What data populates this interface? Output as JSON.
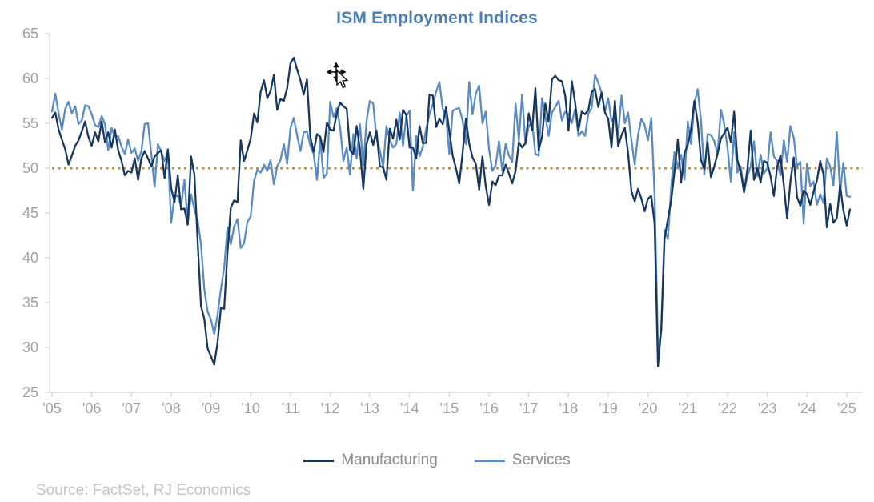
{
  "title": "ISM Employment Indices",
  "source_note": "Source: FactSet, RJ Economics",
  "cursor_icon": "move-pointer-cursor",
  "colors": {
    "title": "#4a7eb5",
    "axis_line": "#d9d9d9",
    "axis_text": "#a0a0a0",
    "legend_text": "#8a8a8a",
    "source_text": "#c4c4c4",
    "reference_line": "#b2924d",
    "manufacturing": "#17375e",
    "services": "#5a8bc2"
  },
  "chart_data": {
    "type": "line",
    "title": "ISM Employment Indices",
    "xlabel": "",
    "ylabel": "",
    "ylim": [
      25,
      65
    ],
    "y_ticks": [
      25,
      30,
      35,
      40,
      45,
      50,
      55,
      60,
      65
    ],
    "x_tick_labels": [
      "'05",
      "'06",
      "'07",
      "'08",
      "'09",
      "'10",
      "'11",
      "'12",
      "'13",
      "'14",
      "'15",
      "'16",
      "'17",
      "'18",
      "'19",
      "'20",
      "'21",
      "'22",
      "'23",
      "'24",
      "'25"
    ],
    "frequency": "monthly",
    "start": "2005-01",
    "grid": false,
    "legend_position": "bottom",
    "reference_line": {
      "value": 50,
      "style": "dotted",
      "color": "#b2924d"
    },
    "series": [
      {
        "name": "Manufacturing",
        "color": "#17375e",
        "values": [
          55.6,
          56.2,
          54.3,
          53.2,
          52.1,
          50.4,
          51.4,
          52.5,
          53.1,
          54.1,
          55.2,
          53.5,
          52.5,
          54.0,
          53.0,
          55.2,
          52.9,
          54.0,
          52.3,
          54.3,
          52.0,
          50.8,
          49.2,
          49.7,
          49.5,
          51.1,
          48.7,
          51.1,
          51.9,
          51.1,
          50.2,
          51.3,
          51.7,
          52.0,
          48.9,
          52.1,
          47.8,
          46.2,
          49.2,
          45.4,
          45.5,
          43.7,
          51.3,
          49.3,
          41.8,
          34.6,
          33.2,
          29.9,
          29.0,
          28.1,
          30.5,
          34.4,
          34.3,
          40.7,
          45.6,
          46.4,
          46.2,
          53.1,
          50.8,
          52.0,
          53.3,
          56.1,
          55.1,
          58.5,
          59.8,
          57.8,
          58.6,
          60.4,
          56.5,
          57.7,
          57.5,
          58.9,
          61.7,
          62.3,
          61.0,
          59.8,
          58.2,
          59.9,
          53.5,
          51.8,
          53.8,
          53.5,
          51.8,
          55.1,
          54.3,
          54.2,
          56.1,
          57.3,
          56.9,
          56.6,
          52.0,
          51.6,
          54.7,
          52.1,
          47.7,
          52.7,
          54.0,
          52.6,
          54.2,
          50.2,
          50.1,
          48.7,
          54.4,
          53.3,
          55.4,
          53.2,
          56.5,
          55.9,
          52.3,
          52.3,
          51.1,
          54.7,
          52.8,
          52.8,
          58.2,
          58.1,
          54.6,
          55.5,
          54.9,
          56.8,
          54.1,
          51.4,
          50.0,
          48.3,
          51.7,
          55.5,
          52.7,
          51.2,
          50.5,
          47.6,
          51.3,
          48.0,
          45.9,
          48.5,
          48.1,
          49.2,
          49.2,
          50.4,
          49.4,
          48.3,
          49.7,
          52.9,
          52.3,
          52.8,
          56.1,
          54.2,
          58.9,
          52.0,
          53.5,
          57.2,
          55.2,
          59.9,
          60.3,
          59.8,
          59.7,
          58.1,
          54.2,
          59.7,
          57.3,
          54.2,
          56.3,
          56.0,
          56.5,
          58.5,
          58.8,
          56.8,
          58.4,
          56.2,
          55.5,
          52.3,
          57.5,
          52.4,
          53.7,
          54.5,
          51.7,
          47.4,
          46.3,
          47.7,
          46.6,
          45.2,
          46.6,
          46.9,
          43.8,
          27.9,
          32.1,
          42.1,
          44.3,
          46.4,
          49.6,
          53.2,
          48.4,
          51.7,
          52.6,
          54.4,
          57.5,
          55.1,
          50.9,
          49.9,
          52.9,
          49.0,
          50.2,
          51.6,
          53.3,
          53.9,
          54.5,
          52.9,
          56.3,
          50.9,
          49.6,
          47.3,
          49.9,
          54.2,
          48.7,
          50.0,
          48.4,
          50.8,
          50.6,
          49.1,
          46.9,
          50.2,
          51.4,
          48.1,
          44.4,
          48.5,
          51.2,
          46.8,
          45.8,
          47.5,
          47.1,
          45.9,
          47.4,
          48.6,
          50.8,
          49.3,
          43.4,
          46.0,
          43.9,
          44.4,
          48.1,
          45.3,
          43.6,
          45.4
        ]
      },
      {
        "name": "Services",
        "color": "#5a8bc2",
        "values": [
          56.3,
          58.3,
          56.1,
          54.3,
          56.6,
          57.4,
          56.1,
          56.9,
          54.9,
          55.3,
          57.0,
          56.9,
          56.0,
          54.8,
          54.6,
          55.8,
          54.9,
          52.0,
          54.5,
          53.5,
          53.6,
          52.4,
          51.6,
          53.2,
          51.7,
          52.2,
          50.8,
          51.9,
          54.9,
          55.0,
          51.6,
          47.9,
          52.7,
          51.8,
          50.8,
          51.8,
          43.9,
          46.9,
          46.9,
          45.8,
          48.7,
          43.8,
          47.1,
          45.4,
          44.2,
          41.5,
          36.5,
          34.0,
          33.1,
          31.5,
          33.6,
          36.5,
          38.9,
          43.4,
          41.5,
          43.5,
          44.3,
          41.1,
          41.6,
          44.0,
          44.6,
          48.6,
          49.8,
          49.5,
          50.4,
          49.7,
          50.9,
          48.2,
          50.2,
          50.9,
          52.7,
          50.5,
          54.5,
          55.6,
          53.7,
          51.9,
          54.0,
          54.1,
          52.5,
          51.6,
          48.7,
          53.3,
          48.9,
          49.4,
          57.4,
          55.7,
          56.7,
          54.6,
          50.8,
          52.3,
          49.3,
          53.8,
          51.1,
          54.9,
          50.3,
          55.3,
          57.5,
          57.2,
          53.3,
          52.0,
          50.1,
          54.7,
          53.2,
          52.3,
          52.7,
          56.2,
          52.5,
          55.8,
          56.4,
          47.5,
          53.6,
          51.3,
          52.4,
          54.4,
          56.0,
          57.1,
          58.5,
          59.6,
          56.6,
          55.7,
          51.6,
          56.4,
          56.6,
          56.7,
          55.3,
          52.7,
          59.6,
          56.0,
          58.3,
          59.2,
          55.0,
          56.3,
          52.1,
          49.7,
          50.3,
          53.0,
          49.7,
          52.7,
          51.4,
          50.7,
          57.2,
          53.1,
          58.2,
          52.7,
          54.7,
          55.2,
          51.6,
          51.4,
          57.8,
          55.8,
          53.6,
          56.2,
          56.8,
          57.5,
          55.3,
          56.3,
          56.0,
          55.0,
          56.6,
          53.6,
          54.1,
          53.6,
          56.1,
          56.7,
          60.4,
          59.5,
          58.4,
          56.3,
          57.8,
          55.2,
          55.9,
          53.7,
          58.1,
          55.0,
          56.2,
          53.1,
          50.4,
          53.7,
          55.5,
          54.8,
          53.1,
          55.6,
          47.0,
          30.0,
          31.8,
          43.1,
          42.1,
          47.9,
          51.8,
          50.1,
          51.5,
          48.7,
          55.2,
          52.7,
          57.2,
          58.8,
          55.3,
          49.3,
          53.8,
          53.7,
          53.0,
          51.6,
          56.5,
          54.9,
          52.3,
          48.5,
          54.0,
          49.5,
          50.2,
          47.4,
          49.1,
          50.2,
          53.0,
          49.1,
          51.5,
          49.4,
          50.0,
          54.0,
          51.3,
          50.8,
          49.2,
          53.1,
          50.7,
          54.7,
          53.4,
          50.2,
          50.7,
          43.8,
          50.5,
          48.0,
          48.5,
          45.9,
          47.1,
          46.1,
          51.1,
          50.2,
          48.1,
          54.0,
          47.3,
          50.6,
          46.9,
          46.8
        ]
      }
    ]
  }
}
